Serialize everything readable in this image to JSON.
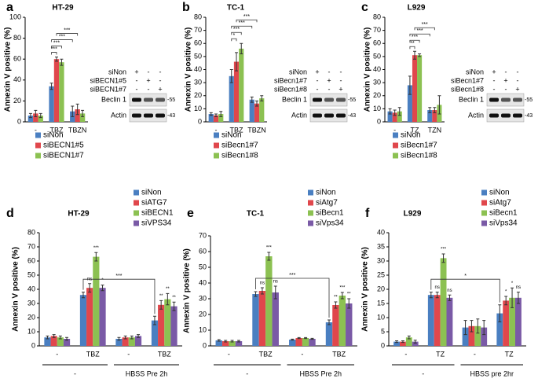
{
  "chart_data": [
    {
      "type": "bar",
      "letter": "a",
      "title": "HT-29",
      "ylabel": "Annexin V positive (%)",
      "categories": [
        "-",
        "TBZ",
        "TBZN"
      ],
      "ylim": [
        0,
        100
      ],
      "yticks": [
        0,
        20,
        40,
        60,
        80,
        100
      ],
      "series": [
        {
          "name": "siNon",
          "color": "#4a7fc1",
          "values": [
            6,
            34,
            10
          ],
          "errors": [
            2,
            3,
            5
          ]
        },
        {
          "name": "siBECN1#5",
          "color": "#e0474c",
          "values": [
            8,
            60,
            12
          ],
          "errors": [
            3,
            2,
            5
          ]
        },
        {
          "name": "siBECN1#7",
          "color": "#8cc152",
          "values": [
            6,
            57,
            8
          ],
          "errors": [
            2,
            3,
            3
          ]
        }
      ],
      "annotations": [
        "***",
        "***",
        "***",
        "***"
      ],
      "blot": {
        "rows": [
          {
            "label": "siNon",
            "signs": [
              "+",
              "-",
              "-"
            ]
          },
          {
            "label": "siBECN1#5",
            "signs": [
              "-",
              "+",
              "-"
            ]
          },
          {
            "label": "siBECN1#7",
            "signs": [
              "-",
              "-",
              "+"
            ]
          }
        ],
        "bands": [
          "Beclin 1",
          "Actin"
        ],
        "markers": [
          "-55",
          "-43"
        ]
      }
    },
    {
      "type": "bar",
      "letter": "b",
      "title": "TC-1",
      "ylabel": "Annexin V positive (%)",
      "categories": [
        "-",
        "TBZ",
        "TBZN"
      ],
      "ylim": [
        0,
        80
      ],
      "yticks": [
        0,
        10,
        20,
        30,
        40,
        50,
        60,
        70,
        80
      ],
      "series": [
        {
          "name": "siNon",
          "color": "#4a7fc1",
          "values": [
            6,
            35,
            17
          ],
          "errors": [
            1,
            5,
            2
          ]
        },
        {
          "name": "siBecn1#7",
          "color": "#e0474c",
          "values": [
            5,
            46,
            14
          ],
          "errors": [
            1,
            7,
            2
          ]
        },
        {
          "name": "siBecn1#8",
          "color": "#8cc152",
          "values": [
            6,
            56,
            18
          ],
          "errors": [
            2,
            4,
            2
          ]
        }
      ],
      "annotations": [
        "*",
        "***",
        "***",
        "***"
      ],
      "blot": {
        "rows": [
          {
            "label": "siNon",
            "signs": [
              "+",
              "-",
              "-"
            ]
          },
          {
            "label": "siBecn1#7",
            "signs": [
              "-",
              "+",
              "-"
            ]
          },
          {
            "label": "siBecn1#8",
            "signs": [
              "-",
              "-",
              "+"
            ]
          }
        ],
        "bands": [
          "Beclin 1",
          "Actin"
        ],
        "markers": [
          "-55",
          "-43"
        ]
      }
    },
    {
      "type": "bar",
      "letter": "c",
      "title": "L929",
      "ylabel": "Annexin V positive (%)",
      "categories": [
        "-",
        "TZ",
        "TZN"
      ],
      "ylim": [
        0,
        80
      ],
      "yticks": [
        0,
        10,
        20,
        30,
        40,
        50,
        60,
        70,
        80
      ],
      "series": [
        {
          "name": "siNon",
          "color": "#4a7fc1",
          "values": [
            8,
            28,
            9
          ],
          "errors": [
            2,
            7,
            2
          ]
        },
        {
          "name": "siBecn1#7",
          "color": "#e0474c",
          "values": [
            7,
            51,
            9
          ],
          "errors": [
            2,
            3,
            2
          ]
        },
        {
          "name": "siBecn1#8",
          "color": "#8cc152",
          "values": [
            8,
            51,
            13
          ],
          "errors": [
            3,
            1,
            7
          ]
        }
      ],
      "annotations": [
        "**",
        "***",
        "***",
        "***"
      ],
      "blot": {
        "rows": [
          {
            "label": "siNon",
            "signs": [
              "+",
              "-",
              "-"
            ]
          },
          {
            "label": "siBecn1#7",
            "signs": [
              "-",
              "+",
              "-"
            ]
          },
          {
            "label": "siBecn1#8",
            "signs": [
              "-",
              "-",
              "+"
            ]
          }
        ],
        "bands": [
          "Beclin 1",
          "Actin"
        ],
        "markers": [
          "-55",
          "-43"
        ]
      }
    },
    {
      "type": "bar",
      "letter": "d",
      "title": "HT-29",
      "ylabel": "Annexin V positive (%)",
      "categories": [
        "-",
        "TBZ",
        "-",
        "TBZ"
      ],
      "groups": [
        "-",
        "HBSS Pre 2h"
      ],
      "ylim": [
        0,
        80
      ],
      "yticks": [
        0,
        10,
        20,
        30,
        40,
        50,
        60,
        70,
        80
      ],
      "series": [
        {
          "name": "siNon",
          "color": "#4a7fc1",
          "values": [
            6,
            36,
            5,
            18
          ],
          "errors": [
            1,
            2,
            1,
            3
          ],
          "sig": [
            null,
            null,
            null,
            null
          ]
        },
        {
          "name": "siATG7",
          "color": "#e0474c",
          "values": [
            7,
            41,
            6,
            29
          ],
          "errors": [
            1,
            3,
            1,
            3
          ],
          "sig": [
            null,
            "ns",
            null,
            "**"
          ]
        },
        {
          "name": "siBECN1",
          "color": "#8cc152",
          "values": [
            6,
            63,
            6,
            33
          ],
          "errors": [
            1,
            3,
            1,
            4
          ],
          "sig": [
            null,
            "***",
            null,
            "**"
          ]
        },
        {
          "name": "siVPS34",
          "color": "#7a5aa6",
          "values": [
            5,
            41,
            7,
            28
          ],
          "errors": [
            1,
            2,
            1,
            3
          ],
          "sig": [
            null,
            "*",
            null,
            "**"
          ]
        }
      ],
      "annotations": [
        "***"
      ]
    },
    {
      "type": "bar",
      "letter": "e",
      "title": "TC-1",
      "ylabel": "Annexin V positive (%)",
      "categories": [
        "-",
        "TBZ",
        "-",
        "TBZ"
      ],
      "groups": [
        "-",
        "HBSS Pre 2h"
      ],
      "ylim": [
        0,
        70
      ],
      "yticks": [
        0,
        10,
        20,
        30,
        40,
        50,
        60,
        70
      ],
      "series": [
        {
          "name": "siNon",
          "color": "#4a7fc1",
          "values": [
            3.5,
            33,
            4,
            15
          ],
          "errors": [
            0.5,
            1.5,
            0.3,
            1.5
          ],
          "sig": [
            null,
            null,
            null,
            null
          ]
        },
        {
          "name": "siAtg7",
          "color": "#e0474c",
          "values": [
            3,
            35,
            5,
            26
          ],
          "errors": [
            0.5,
            2,
            0.3,
            2
          ],
          "sig": [
            null,
            "ns",
            null,
            "**"
          ]
        },
        {
          "name": "siBecn1",
          "color": "#8cc152",
          "values": [
            3,
            57,
            5,
            32
          ],
          "errors": [
            0.5,
            2.5,
            0.3,
            2
          ],
          "sig": [
            null,
            "***",
            null,
            "***"
          ]
        },
        {
          "name": "siVps34",
          "color": "#7a5aa6",
          "values": [
            3,
            34,
            4.5,
            27
          ],
          "errors": [
            0.5,
            4,
            0.3,
            3
          ],
          "sig": [
            null,
            "ns",
            null,
            "**"
          ]
        }
      ],
      "annotations": [
        "***"
      ]
    },
    {
      "type": "bar",
      "letter": "f",
      "title": "L929",
      "ylabel": "Annexin V positive (%)",
      "categories": [
        "-",
        "TZ",
        "-",
        "TZ"
      ],
      "groups": [
        "-",
        "HBSS pre 2hr"
      ],
      "ylim": [
        0,
        40
      ],
      "yticks": [
        0,
        5,
        10,
        15,
        20,
        25,
        30,
        35,
        40
      ],
      "series": [
        {
          "name": "siNon",
          "color": "#4a7fc1",
          "values": [
            1.5,
            18,
            6.5,
            11.5
          ],
          "errors": [
            0.3,
            1,
            2.5,
            3
          ],
          "sig": [
            null,
            null,
            null,
            null
          ]
        },
        {
          "name": "siAtg7",
          "color": "#e0474c",
          "values": [
            1.5,
            18,
            7,
            16
          ],
          "errors": [
            0.3,
            1,
            2,
            1.5
          ],
          "sig": [
            null,
            "ns",
            null,
            "*"
          ]
        },
        {
          "name": "siBecn1",
          "color": "#8cc152",
          "values": [
            3,
            31,
            7,
            17
          ],
          "errors": [
            0.5,
            1.5,
            2.5,
            3.5
          ],
          "sig": [
            null,
            "***",
            null,
            "*"
          ]
        },
        {
          "name": "siVps34",
          "color": "#7a5aa6",
          "values": [
            1.5,
            17,
            6.5,
            17
          ],
          "errors": [
            0.5,
            1,
            2.5,
            2
          ],
          "sig": [
            null,
            "ns",
            null,
            "ns"
          ]
        }
      ],
      "annotations": [
        "*"
      ]
    }
  ]
}
